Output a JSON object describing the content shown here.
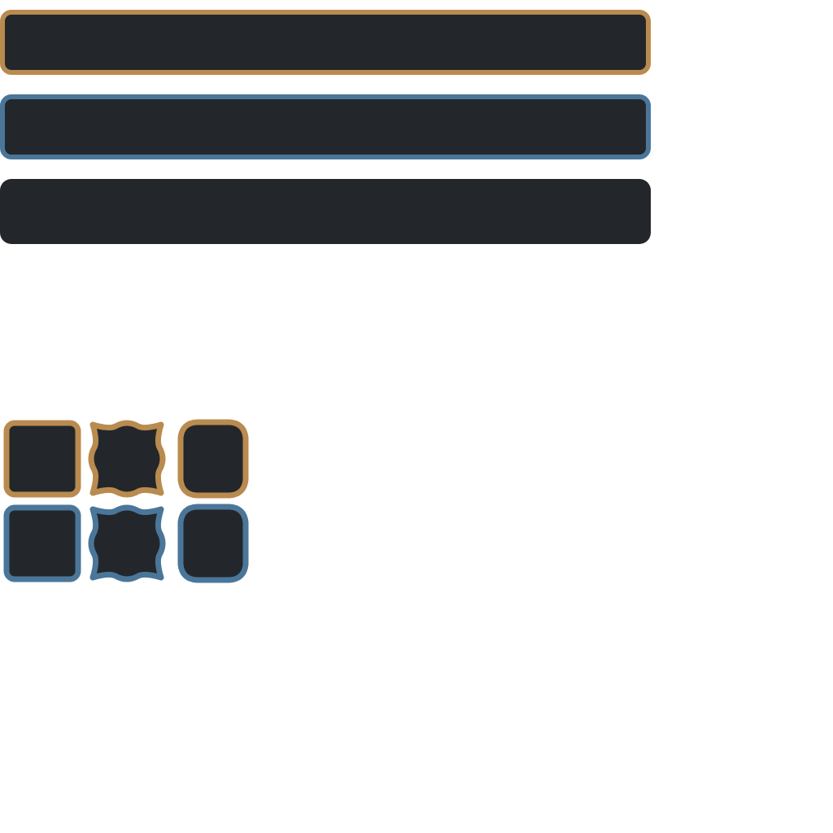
{
  "colors": {
    "background": "#ffffff",
    "fill": "#23272b",
    "accent_gold": "#b98b4f",
    "accent_blue": "#4a7699"
  },
  "panels": [
    {
      "name": "bar-gold-border",
      "border": "gold"
    },
    {
      "name": "bar-blue-border",
      "border": "blue"
    },
    {
      "name": "bar-no-border",
      "border": "none"
    }
  ],
  "tiles": [
    {
      "row": "gold",
      "shapes": [
        "rounded-square",
        "star-square",
        "rounded-octagon"
      ]
    },
    {
      "row": "blue",
      "shapes": [
        "rounded-square",
        "star-square",
        "rounded-octagon"
      ]
    }
  ]
}
